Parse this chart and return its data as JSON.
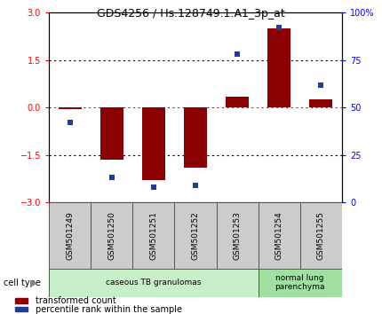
{
  "title": "GDS4256 / Hs.128749.1.A1_3p_at",
  "samples": [
    "GSM501249",
    "GSM501250",
    "GSM501251",
    "GSM501252",
    "GSM501253",
    "GSM501254",
    "GSM501255"
  ],
  "red_bars": [
    -0.05,
    -1.65,
    -2.3,
    -1.9,
    0.35,
    2.5,
    0.25
  ],
  "blue_dots": [
    42,
    13,
    8,
    9,
    78,
    92,
    62
  ],
  "ylim_left": [
    -3,
    3
  ],
  "ylim_right": [
    0,
    100
  ],
  "yticks_left": [
    -3,
    -1.5,
    0,
    1.5,
    3
  ],
  "yticks_right": [
    0,
    25,
    50,
    75,
    100
  ],
  "ytick_labels_right": [
    "0",
    "25",
    "50",
    "75",
    "100%"
  ],
  "hlines": [
    {
      "y": 1.5,
      "color": "black",
      "style": "dotted"
    },
    {
      "y": 0.0,
      "color": "red",
      "style": "dotted"
    },
    {
      "y": -1.5,
      "color": "black",
      "style": "dotted"
    }
  ],
  "bar_color": "#8B0000",
  "dot_color": "#1F3E99",
  "cell_type_groups": [
    {
      "label": "caseous TB granulomas",
      "indices": [
        0,
        1,
        2,
        3,
        4
      ],
      "color": "#c8f0c8"
    },
    {
      "label": "normal lung\nparenchyma",
      "indices": [
        5,
        6
      ],
      "color": "#a0e0a0"
    }
  ],
  "legend_items": [
    {
      "color": "#8B0000",
      "label": "transformed count"
    },
    {
      "color": "#1F3E99",
      "label": "percentile rank within the sample"
    }
  ],
  "cell_type_label": "cell type",
  "bar_width": 0.55,
  "bg_color": "#ffffff",
  "plot_bg": "#ffffff",
  "label_box_color": "#cccccc",
  "label_box_edge": "#555555"
}
